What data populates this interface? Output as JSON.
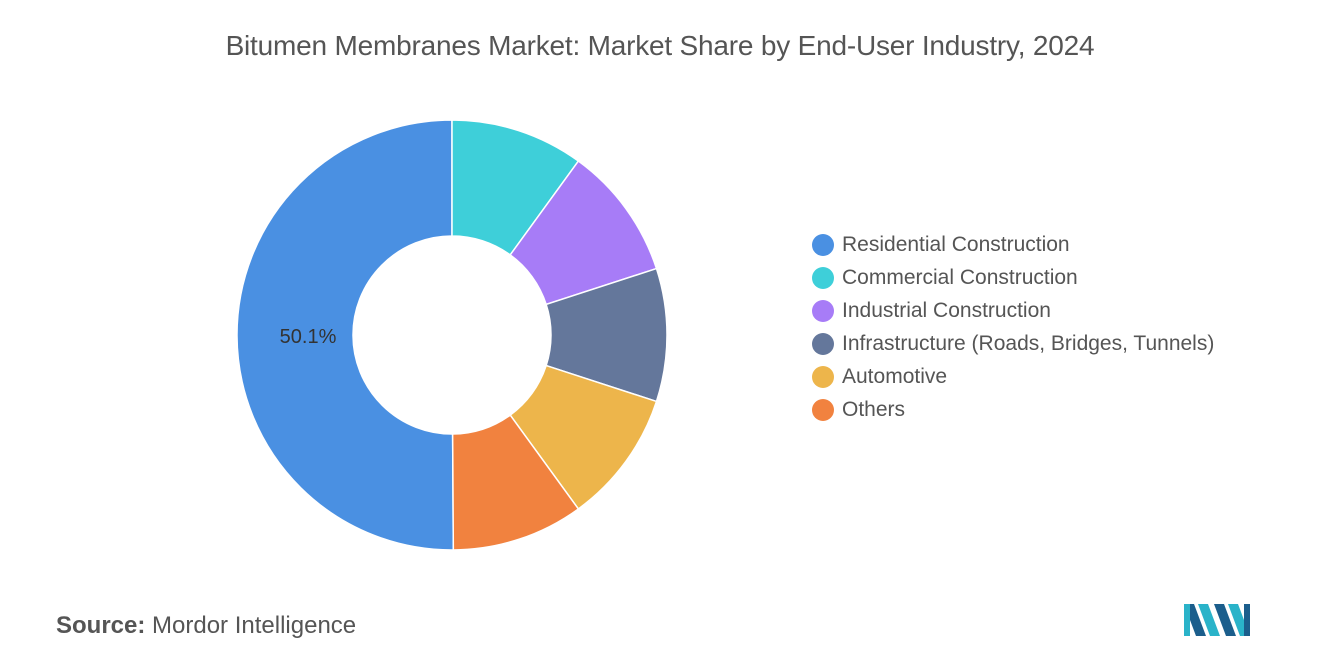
{
  "title": "Bitumen Membranes Market: Market Share by End-User Industry, 2024",
  "source": {
    "prefix": "Source:",
    "name": "Mordor Intelligence"
  },
  "chart_data": {
    "type": "pie",
    "donut": true,
    "title": "Bitumen Membranes Market: Market Share by End-User Industry, 2024",
    "legend_position": "right",
    "series": [
      {
        "name": "Residential Construction",
        "value": 50.1,
        "color": "#4A90E2",
        "label": "50.1%"
      },
      {
        "name": "Commercial Construction",
        "value": 10.0,
        "color": "#3ECFD9"
      },
      {
        "name": "Industrial Construction",
        "value": 10.0,
        "color": "#A77CF7"
      },
      {
        "name": "Infrastructure (Roads, Bridges, Tunnels)",
        "value": 10.0,
        "color": "#64779B"
      },
      {
        "name": "Automotive",
        "value": 10.0,
        "color": "#EDB54B"
      },
      {
        "name": "Others",
        "value": 9.9,
        "color": "#F1823F"
      }
    ]
  },
  "logo": {
    "icon": "mordor-intelligence-logo",
    "colors": [
      "#2AB3C9",
      "#1B5E8C"
    ]
  }
}
